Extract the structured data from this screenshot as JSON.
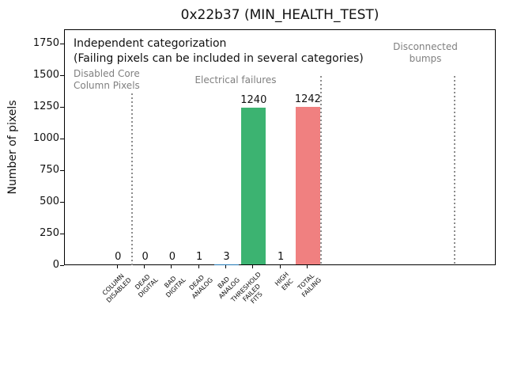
{
  "chart_data": {
    "type": "bar",
    "title": "0x22b37 (MIN_HEALTH_TEST)",
    "xlabel": "",
    "ylabel": "Number of pixels",
    "ylim": [
      0,
      1862
    ],
    "yticks": [
      0,
      250,
      500,
      750,
      1000,
      1250,
      1500,
      1750
    ],
    "grid": false,
    "legend": "none",
    "categories": [
      "COLUMN\nDISABLED",
      "DEAD\nDIGITAL",
      "BAD\nDIGITAL",
      "DEAD\nANALOG",
      "BAD\nANALOG",
      "THRESHOLD\nFAILED\nFITS",
      "HIGH\nENC",
      "TOTAL\nFAILING"
    ],
    "values": [
      0,
      0,
      0,
      1,
      3,
      1240,
      1,
      1242
    ],
    "value_labels": [
      "0",
      "0",
      "0",
      "1",
      "3",
      "1240",
      "1",
      "1242"
    ],
    "bar_colors": [
      "#1f77b4",
      "#1f77b4",
      "#1f77b4",
      "#1f77b4",
      "#1f77b4",
      "#3cb371",
      "#1f77b4",
      "#f08080"
    ],
    "annotations": {
      "independent": "Independent categorization",
      "note": "(Failing pixels can be included in several categories)"
    },
    "sections": [
      {
        "label": "Disabled Core\nColumn Pixels"
      },
      {
        "label": "Electrical failures"
      },
      {
        "label": "Disconnected\nbumps"
      }
    ],
    "separator_style": "dotted",
    "colors": {
      "threshold_failed_fits_bar": "#3cb371",
      "total_failing_bar": "#f08080",
      "section_text": "#808080",
      "separator_line": "#8c8c8c"
    }
  }
}
